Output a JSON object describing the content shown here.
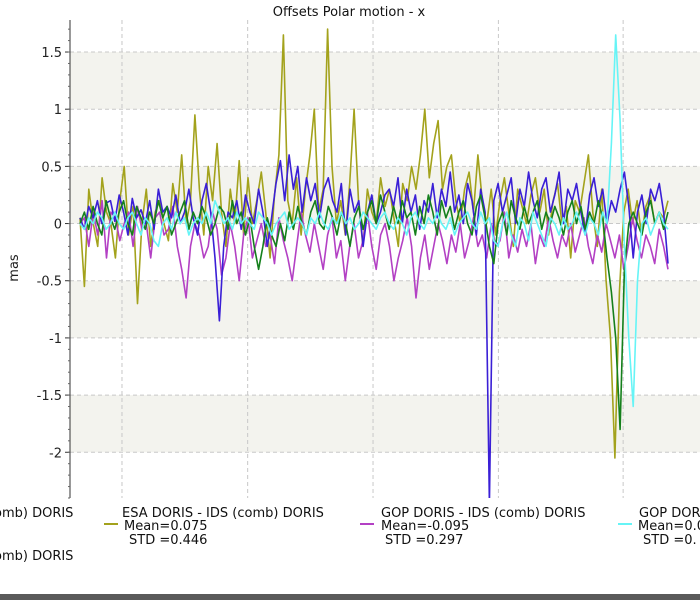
{
  "chart_data": {
    "type": "line",
    "title": "Offsets Polar motion - x",
    "ylabel": "mas",
    "xlabel": "",
    "ylim": [
      -2.4,
      1.78
    ],
    "yticks": [
      1.5,
      1,
      0.5,
      0,
      -0.5,
      -1,
      -1.5,
      -2
    ],
    "ytick_labels": [
      "1.5",
      "1",
      "0.5",
      "0",
      "-0.5",
      "-1",
      "-1.5",
      "-2"
    ],
    "grid": true,
    "legend_position": "bottom",
    "colors": {
      "background": "#ffffff",
      "band": "#f3f3ee",
      "grid": "#c8c8c8"
    },
    "series": [
      {
        "legend_prefix": "omb) DORIS",
        "color": "#3a1fd6",
        "values": [
          0.05,
          -0.05,
          0.15,
          0.05,
          0.2,
          0.0,
          0.18,
          0.2,
          0.02,
          0.25,
          0.1,
          -0.1,
          0.22,
          0.05,
          0.12,
          0.0,
          0.2,
          -0.05,
          0.3,
          0.1,
          0.15,
          0.05,
          0.25,
          0.0,
          0.1,
          0.3,
          0.05,
          -0.1,
          0.2,
          0.35,
          0.1,
          -0.3,
          -0.85,
          -0.2,
          0.1,
          0.05,
          0.2,
          -0.05,
          0.25,
          0.1,
          0.0,
          0.3,
          0.1,
          -0.2,
          0.05,
          0.35,
          0.55,
          0.2,
          0.6,
          0.3,
          0.5,
          0.1,
          0.4,
          0.2,
          0.35,
          0.05,
          0.3,
          0.4,
          0.2,
          0.1,
          0.35,
          -0.1,
          0.3,
          0.1,
          0.2,
          -0.2,
          0.1,
          0.25,
          0.0,
          0.1,
          0.25,
          0.3,
          0.15,
          0.4,
          0.0,
          0.3,
          0.1,
          0.25,
          -0.05,
          0.2,
          0.1,
          0.35,
          0.05,
          0.3,
          0.15,
          0.45,
          0.1,
          0.25,
          0.0,
          0.35,
          0.2,
          -0.1,
          0.3,
          0.1,
          -2.45,
          0.2,
          0.35,
          0.1,
          0.25,
          0.4,
          0.0,
          0.3,
          0.15,
          0.45,
          0.2,
          0.05,
          0.3,
          0.4,
          0.1,
          0.25,
          0.45,
          0.0,
          0.3,
          0.2,
          0.35,
          0.1,
          -0.1,
          0.25,
          0.4,
          0.15,
          0.3,
          0.0,
          0.2,
          0.1,
          0.3,
          0.45,
          0.15,
          -0.3,
          0.1,
          0.25,
          0.0,
          0.3,
          0.2,
          0.35,
          0.1,
          -0.35
        ],
        "stats": null
      },
      {
        "legend_prefix": "ESA DORIS - IDS (comb) DORIS",
        "color": "#a3a21c",
        "values": [
          0.05,
          -0.55,
          0.3,
          0.0,
          -0.2,
          0.4,
          0.1,
          0.0,
          -0.3,
          0.2,
          0.5,
          -0.1,
          0.15,
          -0.7,
          0.0,
          0.3,
          -0.2,
          0.1,
          0.2,
          0.0,
          -0.15,
          0.35,
          0.1,
          0.6,
          0.0,
          0.2,
          0.95,
          0.3,
          -0.1,
          0.5,
          0.2,
          0.7,
          0.1,
          -0.2,
          0.3,
          0.0,
          0.55,
          -0.1,
          0.4,
          0.0,
          0.2,
          0.45,
          0.1,
          -0.3,
          0.25,
          0.6,
          1.65,
          0.2,
          0.0,
          0.4,
          -0.1,
          0.3,
          0.6,
          1.0,
          0.1,
          0.3,
          1.7,
          0.5,
          0.0,
          0.2,
          -0.1,
          0.35,
          1.0,
          0.2,
          -0.2,
          0.3,
          0.1,
          0.0,
          0.4,
          0.15,
          0.3,
          0.05,
          -0.2,
          0.35,
          0.2,
          0.5,
          0.3,
          0.6,
          1.0,
          0.4,
          0.7,
          0.9,
          0.3,
          0.5,
          0.6,
          0.2,
          0.0,
          0.3,
          0.45,
          0.1,
          0.6,
          0.2,
          0.0,
          0.3,
          -0.1,
          0.2,
          0.4,
          0.1,
          -0.2,
          0.3,
          0.15,
          0.0,
          0.25,
          0.4,
          0.1,
          0.3,
          -0.1,
          0.2,
          0.35,
          0.0,
          0.15,
          -0.3,
          0.2,
          0.1,
          0.35,
          0.6,
          0.1,
          -0.2,
          0.3,
          -0.5,
          -1.0,
          -2.05,
          -0.6,
          0.1,
          0.3,
          0.0,
          0.2,
          -0.1,
          0.15,
          0.25,
          0.0,
          0.1,
          0.05,
          0.2
        ],
        "stats": {
          "mean": "Mean=0.075",
          "std": "STD =0.446"
        }
      },
      {
        "legend_prefix": "GOP DORIS - IDS (comb) DORIS",
        "color": "#b340c4",
        "values": [
          0.0,
          0.05,
          -0.2,
          0.1,
          -0.1,
          0.2,
          -0.3,
          0.1,
          0.05,
          -0.15,
          0.0,
          0.1,
          -0.2,
          0.15,
          -0.05,
          0.0,
          -0.3,
          0.05,
          0.1,
          -0.1,
          -0.05,
          0.15,
          -0.2,
          -0.4,
          -0.65,
          -0.2,
          0.0,
          -0.1,
          -0.3,
          -0.2,
          0.1,
          -0.05,
          -0.45,
          -0.3,
          0.0,
          -0.2,
          -0.5,
          -0.1,
          0.05,
          -0.3,
          -0.15,
          0.0,
          -0.2,
          -0.1,
          -0.35,
          0.05,
          -0.15,
          -0.3,
          -0.5,
          -0.2,
          0.1,
          -0.1,
          -0.25,
          0.0,
          -0.2,
          -0.4,
          -0.1,
          0.05,
          -0.3,
          -0.15,
          -0.5,
          -0.2,
          0.0,
          -0.3,
          -0.15,
          0.1,
          -0.2,
          -0.4,
          -0.1,
          0.0,
          -0.2,
          -0.5,
          -0.3,
          -0.15,
          0.05,
          -0.2,
          -0.65,
          -0.3,
          -0.1,
          -0.4,
          -0.2,
          0.0,
          -0.15,
          -0.35,
          -0.1,
          -0.25,
          0.0,
          -0.3,
          -0.15,
          0.05,
          -0.2,
          -0.1,
          -0.3,
          0.0,
          -0.2,
          -0.15,
          0.1,
          -0.3,
          -0.1,
          -0.25,
          -0.05,
          -0.2,
          0.0,
          -0.35,
          -0.1,
          -0.2,
          0.05,
          -0.15,
          -0.3,
          -0.1,
          -0.2,
          0.0,
          -0.25,
          -0.1,
          0.05,
          -0.2,
          -0.35,
          -0.1,
          -0.25,
          0.0,
          -0.15,
          -0.3,
          -0.1,
          -0.4,
          -0.2,
          0.05,
          -0.15,
          -0.3,
          -0.1,
          -0.2,
          -0.35,
          -0.05,
          -0.2,
          -0.4
        ],
        "stats": {
          "mean": "Mean=-0.095",
          "std": "STD =0.297"
        }
      },
      {
        "legend_prefix": "GOP DOR",
        "color": "#66f4f6",
        "values": [
          0.0,
          -0.05,
          0.05,
          0.0,
          0.1,
          0.05,
          -0.05,
          0.0,
          0.1,
          0.0,
          -0.05,
          0.05,
          0.1,
          0.0,
          -0.1,
          0.05,
          0.0,
          -0.15,
          -0.2,
          0.0,
          0.05,
          -0.05,
          0.1,
          0.0,
          0.05,
          -0.1,
          0.0,
          0.05,
          0.0,
          0.1,
          0.0,
          0.2,
          0.1,
          0.0,
          0.05,
          -0.05,
          0.1,
          0.0,
          0.05,
          0.0,
          -0.05,
          0.1,
          0.05,
          0.0,
          -0.1,
          0.0,
          0.05,
          0.1,
          -0.05,
          0.0,
          0.05,
          0.0,
          -0.1,
          0.05,
          0.0,
          0.1,
          0.0,
          -0.05,
          0.05,
          0.0,
          0.1,
          0.0,
          0.05,
          -0.05,
          0.0,
          0.1,
          0.05,
          0.0,
          -0.05,
          0.05,
          0.1,
          0.0,
          -0.05,
          0.05,
          0.0,
          -0.1,
          0.05,
          0.1,
          0.0,
          -0.05,
          0.05,
          0.0,
          0.1,
          0.0,
          -0.05,
          0.05,
          -0.1,
          0.0,
          0.05,
          0.1,
          0.0,
          -0.05,
          0.1,
          0.0,
          0.05,
          -0.15,
          -0.2,
          0.0,
          0.1,
          -0.1,
          -0.2,
          0.05,
          0.0,
          -0.15,
          0.1,
          0.0,
          -0.1,
          -0.2,
          0.05,
          0.0,
          -0.1,
          0.05,
          -0.05,
          0.0,
          0.1,
          0.0,
          -0.1,
          0.05,
          0.0,
          -0.1,
          0.1,
          0.0,
          0.7,
          1.65,
          0.9,
          -0.2,
          -1.0,
          -1.6,
          -0.5,
          0.0,
          0.05,
          -0.1,
          0.0,
          0.1,
          0.0,
          -0.05
        ],
        "stats": {
          "mean": "Mean=0.0",
          "std": "STD =0."
        }
      },
      {
        "legend_prefix": "omb) DORIS",
        "color": "#15801c",
        "values": [
          0.0,
          0.1,
          -0.05,
          0.15,
          0.0,
          -0.1,
          0.2,
          0.05,
          -0.05,
          0.1,
          0.2,
          0.0,
          -0.1,
          0.15,
          0.05,
          -0.05,
          0.1,
          0.0,
          0.2,
          0.05,
          0.15,
          -0.1,
          0.0,
          0.1,
          0.2,
          -0.05,
          0.1,
          0.0,
          0.15,
          0.05,
          -0.1,
          0.0,
          0.15,
          0.1,
          -0.05,
          0.2,
          0.0,
          0.1,
          -0.1,
          0.05,
          -0.2,
          -0.4,
          -0.2,
          0.05,
          -0.1,
          -0.2,
          0.0,
          -0.15,
          0.1,
          -0.05,
          0.15,
          0.0,
          -0.1,
          0.1,
          0.2,
          0.0,
          -0.05,
          0.15,
          0.05,
          -0.1,
          0.1,
          0.0,
          -0.2,
          0.05,
          0.15,
          -0.05,
          0.1,
          0.2,
          0.0,
          0.25,
          0.1,
          -0.05,
          0.15,
          0.0,
          0.2,
          0.05,
          0.1,
          -0.1,
          0.15,
          0.0,
          0.25,
          0.1,
          -0.1,
          0.2,
          0.05,
          0.15,
          -0.05,
          0.1,
          0.2,
          0.0,
          -0.1,
          0.15,
          0.25,
          0.05,
          -0.2,
          -0.35,
          0.0,
          0.1,
          -0.1,
          0.2,
          0.05,
          -0.05,
          0.15,
          0.0,
          0.1,
          0.2,
          -0.05,
          0.1,
          0.0,
          0.15,
          0.05,
          -0.1,
          0.1,
          0.2,
          0.0,
          0.15,
          -0.05,
          0.1,
          0.0,
          0.2,
          0.05,
          -0.3,
          -0.6,
          -1.0,
          -1.8,
          -0.4,
          0.0,
          0.1,
          0.0,
          -0.1,
          0.1,
          0.2,
          0.0,
          0.1,
          -0.05,
          0.1
        ],
        "stats": null
      }
    ]
  }
}
